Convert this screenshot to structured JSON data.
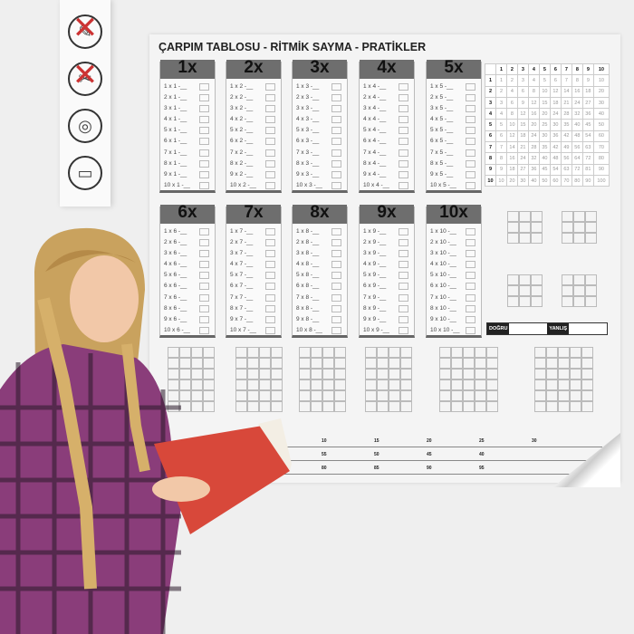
{
  "strip": {
    "icons": [
      "no-pen-icon",
      "no-scissors-icon",
      "roll-icon",
      "wall-mount-icon"
    ]
  },
  "poster": {
    "title": "ÇARPIM TABLOSU - RİTMİK SAYMA - PRATİKLER",
    "tables": [
      {
        "header": "1x",
        "rows": [
          "1 x 1 -__",
          "2 x 1 -__",
          "3 x 1 -__",
          "4 x 1 -__",
          "5 x 1 -__",
          "6 x 1 -__",
          "7 x 1 -__",
          "8 x 1 -__",
          "9 x 1 -__",
          "10 x 1 -__"
        ]
      },
      {
        "header": "2x",
        "rows": [
          "1 x 2 -__",
          "2 x 2 -__",
          "3 x 2 -__",
          "4 x 2 -__",
          "5 x 2 -__",
          "6 x 2 -__",
          "7 x 2 -__",
          "8 x 2 -__",
          "9 x 2 -__",
          "10 x 2 -__"
        ]
      },
      {
        "header": "3x",
        "rows": [
          "1 x 3 -__",
          "2 x 3 -__",
          "3 x 3 -__",
          "4 x 3 -__",
          "5 x 3 -__",
          "6 x 3 -__",
          "7 x 3 -__",
          "8 x 3 -__",
          "9 x 3 -__",
          "10 x 3 -__"
        ]
      },
      {
        "header": "4x",
        "rows": [
          "1 x 4 -__",
          "2 x 4 -__",
          "3 x 4 -__",
          "4 x 4 -__",
          "5 x 4 -__",
          "6 x 4 -__",
          "7 x 4 -__",
          "8 x 4 -__",
          "9 x 4 -__",
          "10 x 4 -__"
        ]
      },
      {
        "header": "5x",
        "rows": [
          "1 x 5 -__",
          "2 x 5 -__",
          "3 x 5 -__",
          "4 x 5 -__",
          "5 x 5 -__",
          "6 x 5 -__",
          "7 x 5 -__",
          "8 x 5 -__",
          "9 x 5 -__",
          "10 x 5 -__"
        ]
      },
      {
        "header": "6x",
        "rows": [
          "1 x 6 -__",
          "2 x 6 -__",
          "3 x 6 -__",
          "4 x 6 -__",
          "5 x 6 -__",
          "6 x 6 -__",
          "7 x 6 -__",
          "8 x 6 -__",
          "9 x 6 -__",
          "10 x 6 -__"
        ]
      },
      {
        "header": "7x",
        "rows": [
          "1 x 7 -__",
          "2 x 7 -__",
          "3 x 7 -__",
          "4 x 7 -__",
          "5 x 7 -__",
          "6 x 7 -__",
          "7 x 7 -__",
          "8 x 7 -__",
          "9 x 7 -__",
          "10 x 7 -__"
        ]
      },
      {
        "header": "8x",
        "rows": [
          "1 x 8 -__",
          "2 x 8 -__",
          "3 x 8 -__",
          "4 x 8 -__",
          "5 x 8 -__",
          "6 x 8 -__",
          "7 x 8 -__",
          "8 x 8 -__",
          "9 x 8 -__",
          "10 x 8 -__"
        ]
      },
      {
        "header": "9x",
        "rows": [
          "1 x 9 -__",
          "2 x 9 -__",
          "3 x 9 -__",
          "4 x 9 -__",
          "5 x 9 -__",
          "6 x 9 -__",
          "7 x 9 -__",
          "8 x 9 -__",
          "9 x 9 -__",
          "10 x 9 -__"
        ]
      },
      {
        "header": "10x",
        "rows": [
          "1 x 10 -__",
          "2 x 10 -__",
          "3 x 10 -__",
          "4 x 10 -__",
          "5 x 10 -__",
          "6 x 10 -__",
          "7 x 10 -__",
          "8 x 10 -__",
          "9 x 10 -__",
          "10 x 10 -__"
        ]
      }
    ],
    "grid": {
      "header": [
        "1",
        "2",
        "3",
        "4",
        "5",
        "6",
        "7",
        "8",
        "9",
        "10"
      ],
      "rows": [
        [
          1,
          2,
          3,
          4,
          5,
          6,
          7,
          8,
          9,
          10
        ],
        [
          2,
          4,
          6,
          8,
          10,
          12,
          14,
          16,
          18,
          20
        ],
        [
          3,
          6,
          9,
          12,
          15,
          18,
          21,
          24,
          27,
          30
        ],
        [
          4,
          8,
          12,
          16,
          20,
          24,
          28,
          32,
          36,
          40
        ],
        [
          5,
          10,
          15,
          20,
          25,
          30,
          35,
          40,
          45,
          50
        ],
        [
          6,
          12,
          18,
          24,
          30,
          36,
          42,
          48,
          54,
          60
        ],
        [
          7,
          14,
          21,
          28,
          35,
          42,
          49,
          56,
          63,
          70
        ],
        [
          8,
          16,
          24,
          32,
          40,
          48,
          56,
          64,
          72,
          80
        ],
        [
          9,
          18,
          27,
          36,
          45,
          54,
          63,
          72,
          81,
          90
        ],
        [
          10,
          20,
          30,
          40,
          50,
          60,
          70,
          80,
          90,
          100
        ]
      ]
    },
    "score": {
      "correct": "DOĞRU",
      "wrong": "YANLIŞ"
    },
    "number_lines": [
      [
        "10",
        "15",
        "20",
        "25",
        "30"
      ],
      [
        "55",
        "50",
        "45",
        "40"
      ],
      [
        "80",
        "85",
        "90",
        "95"
      ]
    ]
  },
  "colors": {
    "header_gray": "#6e6e6e",
    "shirt": "#8a3d7a",
    "book": "#d8483a",
    "hair": "#c9a25e"
  }
}
